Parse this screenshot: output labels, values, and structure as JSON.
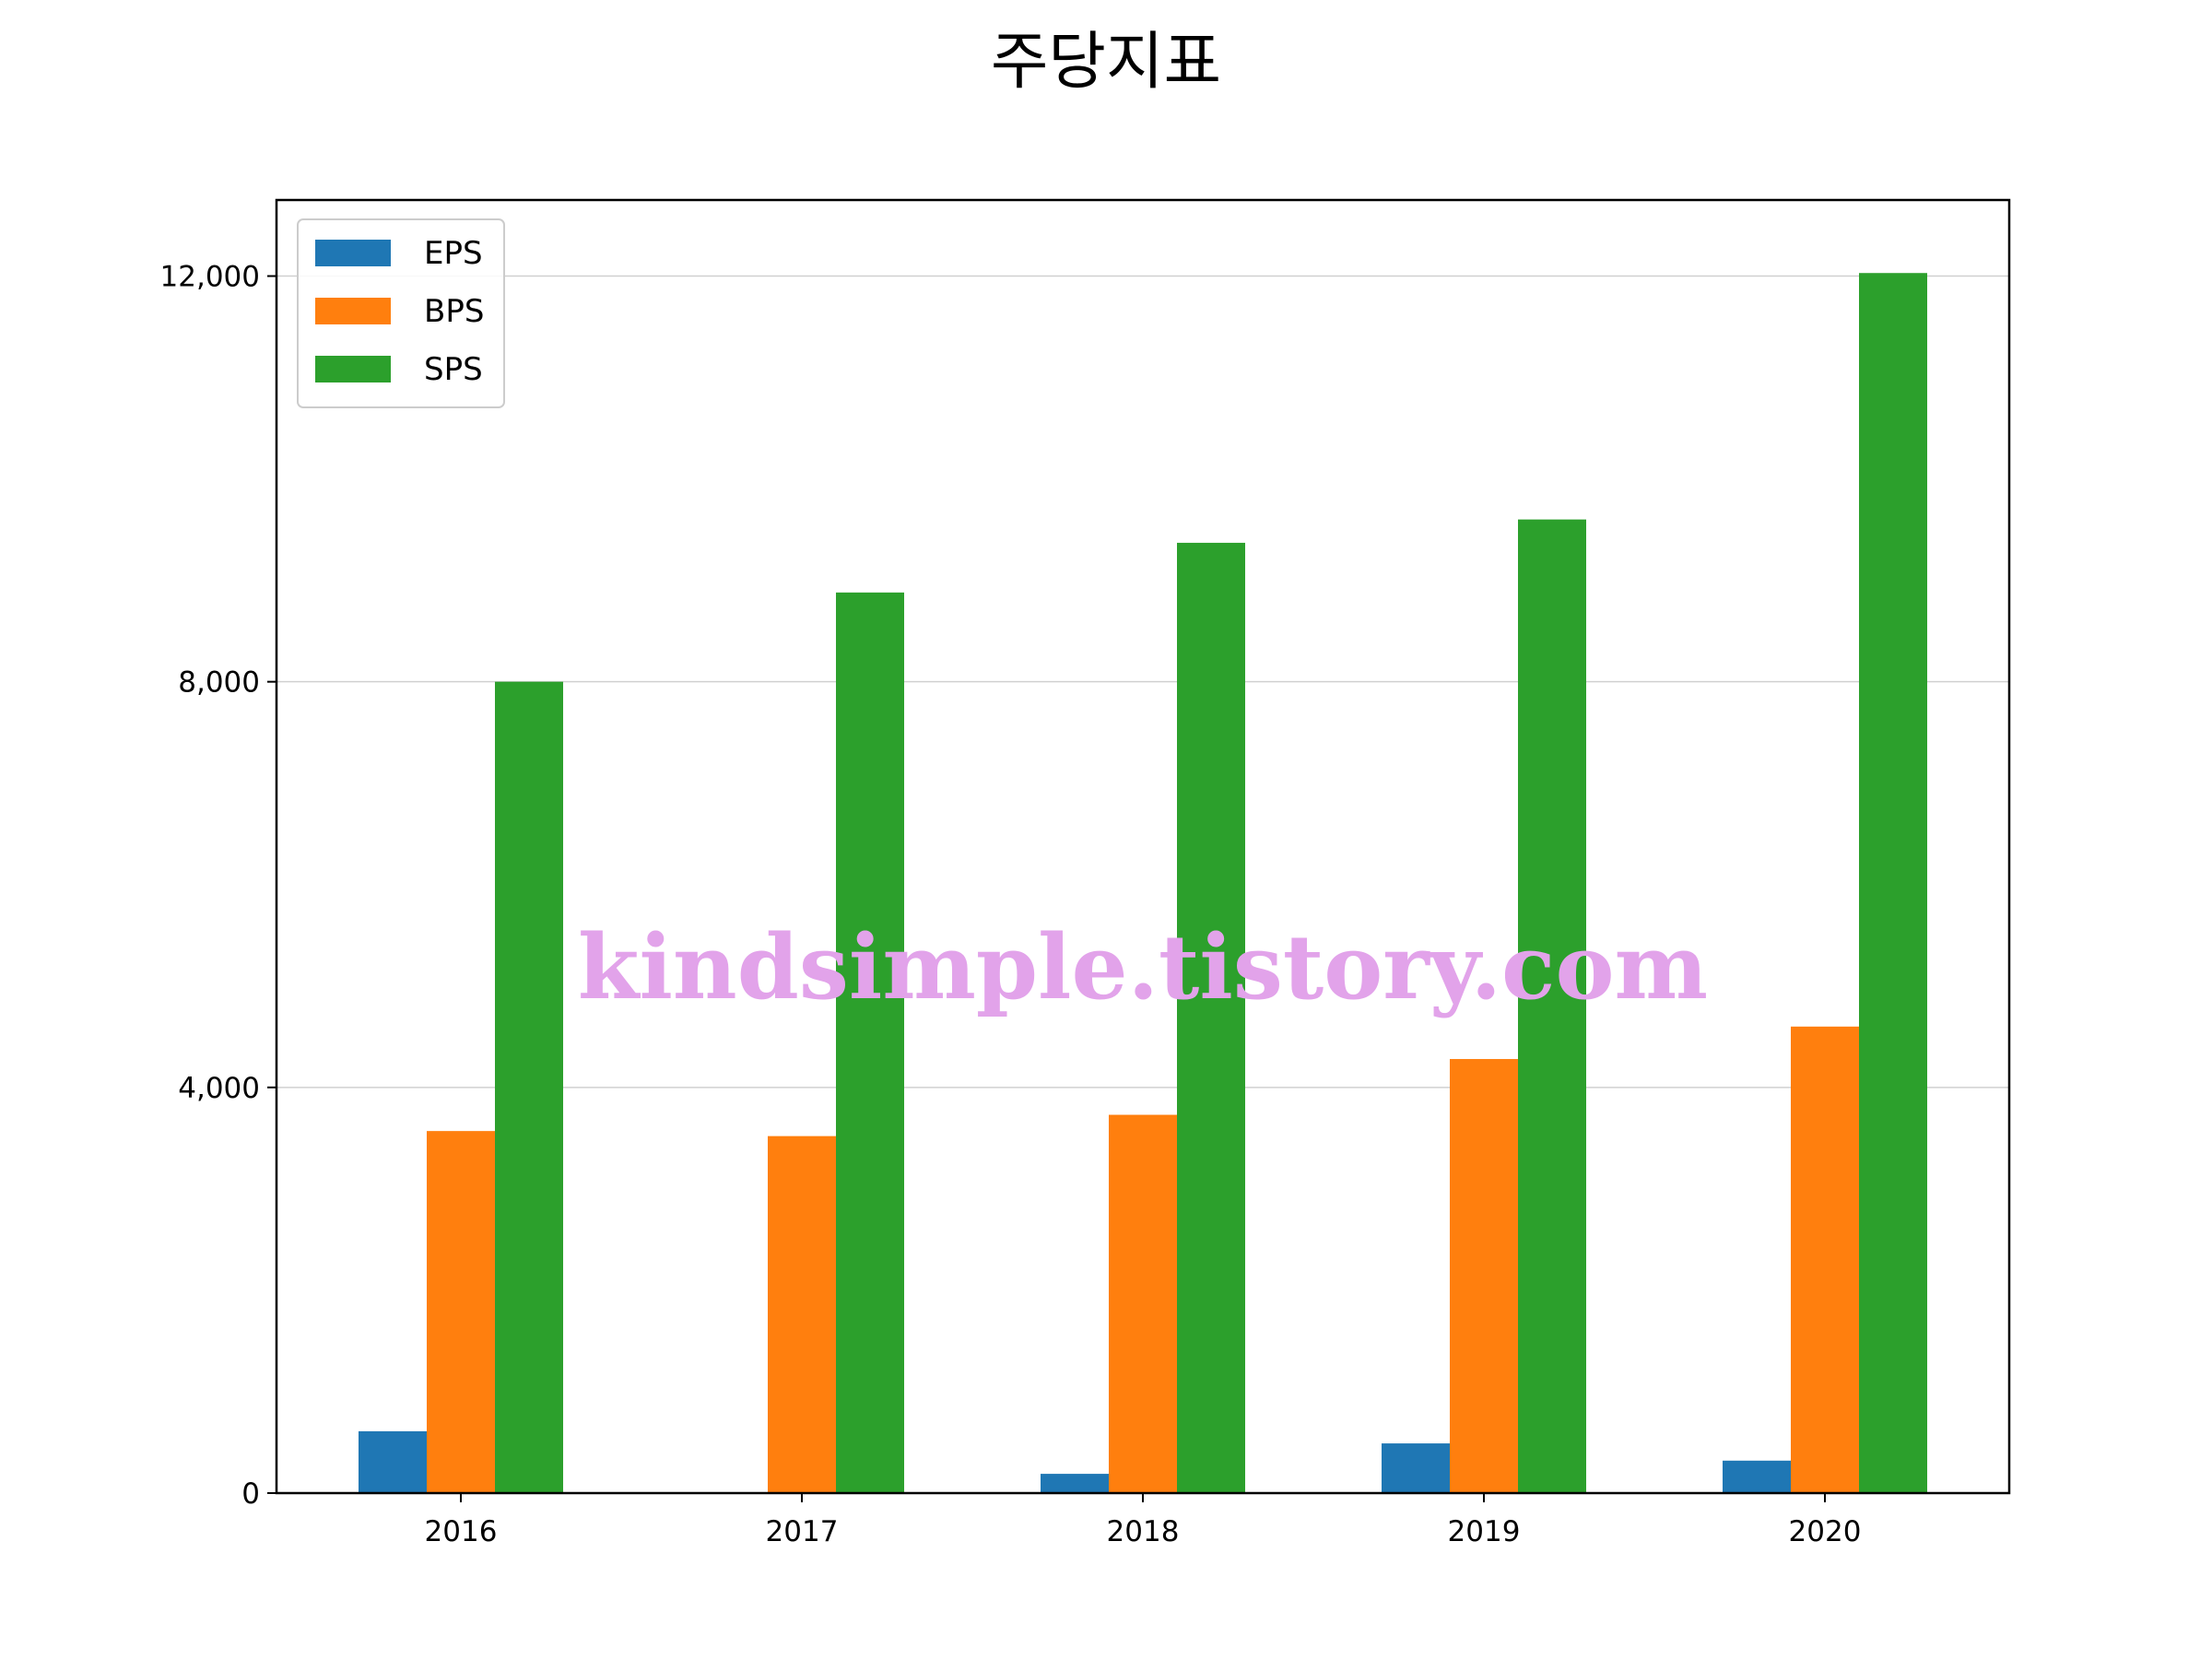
{
  "chart_data": {
    "type": "bar",
    "title": "주당지표",
    "categories": [
      "2016",
      "2017",
      "2018",
      "2019",
      "2020"
    ],
    "series": [
      {
        "name": "EPS",
        "color": "#1f77b4",
        "values": [
          610,
          0,
          190,
          490,
          320
        ]
      },
      {
        "name": "BPS",
        "color": "#ff7f0e",
        "values": [
          3570,
          3520,
          3730,
          4280,
          4600
        ]
      },
      {
        "name": "SPS",
        "color": "#2ca02c",
        "values": [
          8000,
          8880,
          9370,
          9600,
          12030
        ]
      }
    ],
    "ylim": [
      0,
      12750
    ],
    "yticks": [
      0,
      4000,
      8000,
      12000
    ],
    "ytick_labels": [
      "0",
      "4,000",
      "8,000",
      "12,000"
    ],
    "xlabel": "",
    "ylabel": "",
    "grid": "horizontal",
    "legend_position": "top-left"
  },
  "watermark": "kindsimple.tistory.com"
}
